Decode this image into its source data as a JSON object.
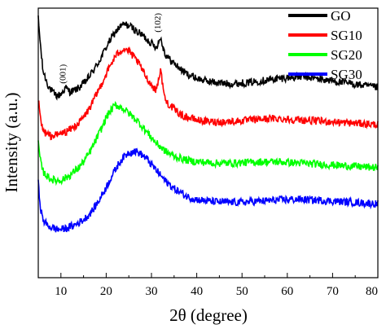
{
  "chart_data": {
    "type": "line",
    "xlabel": "2θ (degree)",
    "ylabel": "Intensity (a.u.)",
    "xlim": [
      5,
      80
    ],
    "ylim": [
      0,
      10
    ],
    "y_ticks_shown": false,
    "x_ticks": [
      10,
      20,
      30,
      40,
      50,
      60,
      70,
      80
    ],
    "x_tick_labels": [
      "10",
      "20",
      "30",
      "40",
      "50",
      "60",
      "70",
      "80"
    ],
    "legend_position": "top-right",
    "grid": false,
    "series": [
      {
        "name": "GO",
        "color": "#000000",
        "x": [
          5,
          5.5,
          6,
          7,
          8,
          9,
          10,
          11,
          12,
          13,
          14,
          15,
          16,
          17,
          18,
          19,
          20,
          21,
          22,
          23,
          24,
          25,
          26,
          27,
          28,
          29,
          30,
          31,
          32,
          33,
          34,
          35,
          36,
          37,
          38,
          40,
          42,
          44,
          46,
          48,
          50,
          52,
          54,
          56,
          58,
          60,
          62,
          64,
          66,
          68,
          70,
          72,
          74,
          76,
          78,
          80
        ],
        "y": [
          9.6,
          8.6,
          7.7,
          7.2,
          6.9,
          6.75,
          6.8,
          7.05,
          6.9,
          6.95,
          7.05,
          7.2,
          7.4,
          7.65,
          7.9,
          8.2,
          8.55,
          8.85,
          9.1,
          9.3,
          9.4,
          9.35,
          9.25,
          9.1,
          9.0,
          8.85,
          8.7,
          8.55,
          8.9,
          8.3,
          8.1,
          7.95,
          7.8,
          7.65,
          7.55,
          7.4,
          7.3,
          7.25,
          7.2,
          7.2,
          7.22,
          7.25,
          7.3,
          7.35,
          7.38,
          7.42,
          7.45,
          7.45,
          7.4,
          7.35,
          7.3,
          7.25,
          7.2,
          7.15,
          7.1,
          7.05
        ]
      },
      {
        "name": "SG10",
        "color": "#ff0000",
        "x": [
          5,
          5.5,
          6,
          7,
          8,
          9,
          10,
          11,
          12,
          13,
          14,
          15,
          16,
          17,
          18,
          19,
          20,
          21,
          22,
          23,
          24,
          25,
          26,
          27,
          28,
          29,
          30,
          31,
          32,
          33,
          34,
          35,
          36,
          37,
          38,
          40,
          42,
          44,
          46,
          48,
          50,
          52,
          54,
          56,
          58,
          60,
          62,
          64,
          66,
          68,
          70,
          72,
          74,
          76,
          78,
          80
        ],
        "y": [
          6.6,
          5.9,
          5.45,
          5.3,
          5.25,
          5.3,
          5.35,
          5.4,
          5.5,
          5.6,
          5.75,
          5.95,
          6.2,
          6.5,
          6.85,
          7.2,
          7.55,
          7.9,
          8.2,
          8.4,
          8.5,
          8.4,
          8.2,
          8.0,
          7.7,
          7.4,
          7.15,
          6.95,
          7.7,
          6.6,
          6.4,
          6.25,
          6.1,
          6.0,
          5.95,
          5.85,
          5.8,
          5.78,
          5.78,
          5.8,
          5.82,
          5.85,
          5.88,
          5.9,
          5.9,
          5.88,
          5.86,
          5.84,
          5.82,
          5.8,
          5.78,
          5.76,
          5.74,
          5.72,
          5.7,
          5.68
        ]
      },
      {
        "name": "SG20",
        "color": "#00ff00",
        "x": [
          5,
          5.5,
          6,
          7,
          8,
          9,
          10,
          11,
          12,
          13,
          14,
          15,
          16,
          17,
          18,
          19,
          20,
          21,
          22,
          23,
          24,
          25,
          26,
          27,
          28,
          29,
          30,
          31,
          32,
          33,
          34,
          35,
          36,
          37,
          38,
          40,
          42,
          44,
          46,
          48,
          50,
          52,
          54,
          56,
          58,
          60,
          62,
          64,
          66,
          68,
          70,
          72,
          74,
          76,
          78,
          80
        ],
        "y": [
          5.0,
          4.3,
          3.95,
          3.75,
          3.65,
          3.6,
          3.62,
          3.7,
          3.8,
          3.95,
          4.1,
          4.3,
          4.55,
          4.85,
          5.2,
          5.55,
          5.95,
          6.2,
          6.4,
          6.35,
          6.25,
          6.1,
          5.95,
          5.8,
          5.6,
          5.4,
          5.2,
          5.0,
          4.85,
          4.7,
          4.6,
          4.5,
          4.45,
          4.4,
          4.35,
          4.3,
          4.28,
          4.25,
          4.25,
          4.25,
          4.27,
          4.28,
          4.3,
          4.3,
          4.3,
          4.28,
          4.26,
          4.24,
          4.22,
          4.2,
          4.18,
          4.16,
          4.14,
          4.12,
          4.1,
          4.08
        ]
      },
      {
        "name": "SG30",
        "color": "#0000ff",
        "x": [
          5,
          5.5,
          6,
          7,
          8,
          9,
          10,
          11,
          12,
          13,
          14,
          15,
          16,
          17,
          18,
          19,
          20,
          21,
          22,
          23,
          24,
          25,
          26,
          27,
          28,
          29,
          30,
          31,
          32,
          33,
          34,
          35,
          36,
          37,
          38,
          40,
          42,
          44,
          46,
          48,
          50,
          52,
          54,
          56,
          58,
          60,
          62,
          64,
          66,
          68,
          70,
          72,
          74,
          76,
          78,
          80
        ],
        "y": [
          3.5,
          2.6,
          2.15,
          1.95,
          1.85,
          1.8,
          1.8,
          1.82,
          1.88,
          1.95,
          2.05,
          2.15,
          2.3,
          2.5,
          2.75,
          3.05,
          3.35,
          3.7,
          4.0,
          4.3,
          4.5,
          4.65,
          4.7,
          4.65,
          4.55,
          4.4,
          4.2,
          4.0,
          3.8,
          3.6,
          3.45,
          3.3,
          3.2,
          3.1,
          3.0,
          2.9,
          2.85,
          2.82,
          2.8,
          2.8,
          2.8,
          2.82,
          2.84,
          2.86,
          2.88,
          2.9,
          2.9,
          2.9,
          2.88,
          2.86,
          2.84,
          2.82,
          2.8,
          2.78,
          2.76,
          2.74
        ]
      }
    ],
    "annotations": [
      {
        "text": "(001)",
        "x": 11,
        "y": 7.2,
        "rotation": -90
      },
      {
        "text": "(102)",
        "x": 32,
        "y": 9.1,
        "rotation": -90
      }
    ]
  }
}
